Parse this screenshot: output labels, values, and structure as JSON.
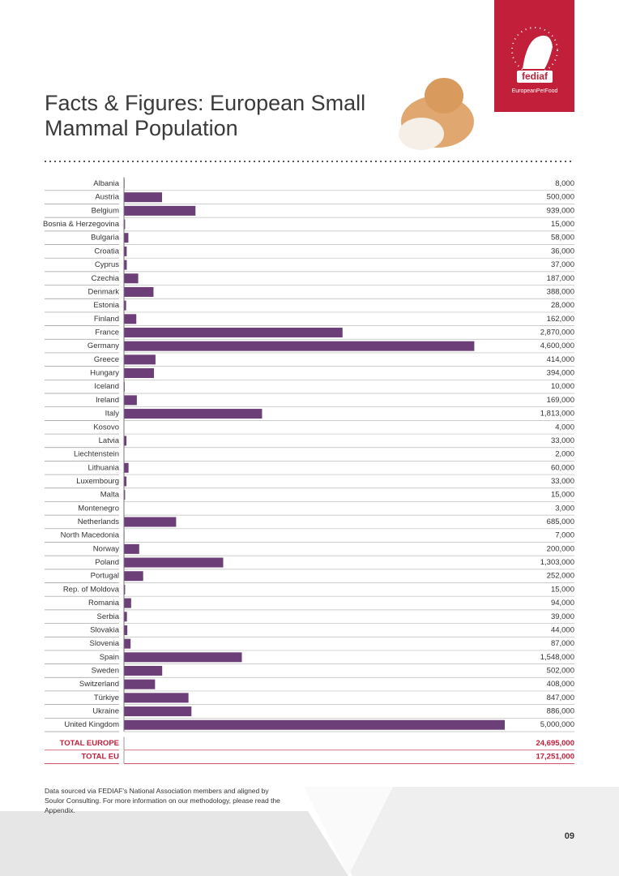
{
  "header": {
    "logo": "fediaf",
    "tagline": "EuropeanPetFood"
  },
  "chart_data": {
    "type": "bar",
    "orientation": "horizontal",
    "title": "Facts & Figures: European Small Mammal Population",
    "color": "#6c3f78",
    "categories": [
      "Albania",
      "Austria",
      "Belgium",
      "Bosnia & Herzegovina",
      "Bulgaria",
      "Croatia",
      "Cyprus",
      "Czechia",
      "Denmark",
      "Estonia",
      "Finland",
      "France",
      "Germany",
      "Greece",
      "Hungary",
      "Iceland",
      "Ireland",
      "Italy",
      "Kosovo",
      "Latvia",
      "Liechtenstein",
      "Lithuania",
      "Luxembourg",
      "Malta",
      "Montenegro",
      "Netherlands",
      "North Macedonia",
      "Norway",
      "Poland",
      "Portugal",
      "Rep. of Moldova",
      "Romania",
      "Serbia",
      "Slovakia",
      "Slovenia",
      "Spain",
      "Sweden",
      "Switzerland",
      "Türkiye",
      "Ukraine",
      "United Kingdom"
    ],
    "values": [
      8000,
      500000,
      939000,
      15000,
      58000,
      36000,
      37000,
      187000,
      388000,
      28000,
      162000,
      2870000,
      4600000,
      414000,
      394000,
      10000,
      169000,
      1813000,
      4000,
      33000,
      2000,
      60000,
      33000,
      15000,
      3000,
      685000,
      7000,
      200000,
      1303000,
      252000,
      15000,
      94000,
      39000,
      44000,
      87000,
      1548000,
      502000,
      408000,
      847000,
      886000,
      5000000
    ],
    "value_labels": [
      "8,000",
      "500,000",
      "939,000",
      "15,000",
      "58,000",
      "36,000",
      "37,000",
      "187,000",
      "388,000",
      "28,000",
      "162,000",
      "2,870,000",
      "4,600,000",
      "414,000",
      "394,000",
      "10,000",
      "169,000",
      "1,813,000",
      "4,000",
      "33,000",
      "2,000",
      "60,000",
      "33,000",
      "15,000",
      "3,000",
      "685,000",
      "7,000",
      "200,000",
      "1,303,000",
      "252,000",
      "15,000",
      "94,000",
      "39,000",
      "44,000",
      "87,000",
      "1,548,000",
      "502,000",
      "408,000",
      "847,000",
      "886,000",
      "5,000,000"
    ],
    "totals": [
      {
        "label": "TOTAL EUROPE",
        "value": "24,695,000"
      },
      {
        "label": "TOTAL EU",
        "value": "17,251,000"
      }
    ]
  },
  "footnote": "Data sourced via FEDIAF's National Association members and aligned by Soulor Consulting. For more information on our methodology, please read the Appendix.",
  "page_number": "09"
}
